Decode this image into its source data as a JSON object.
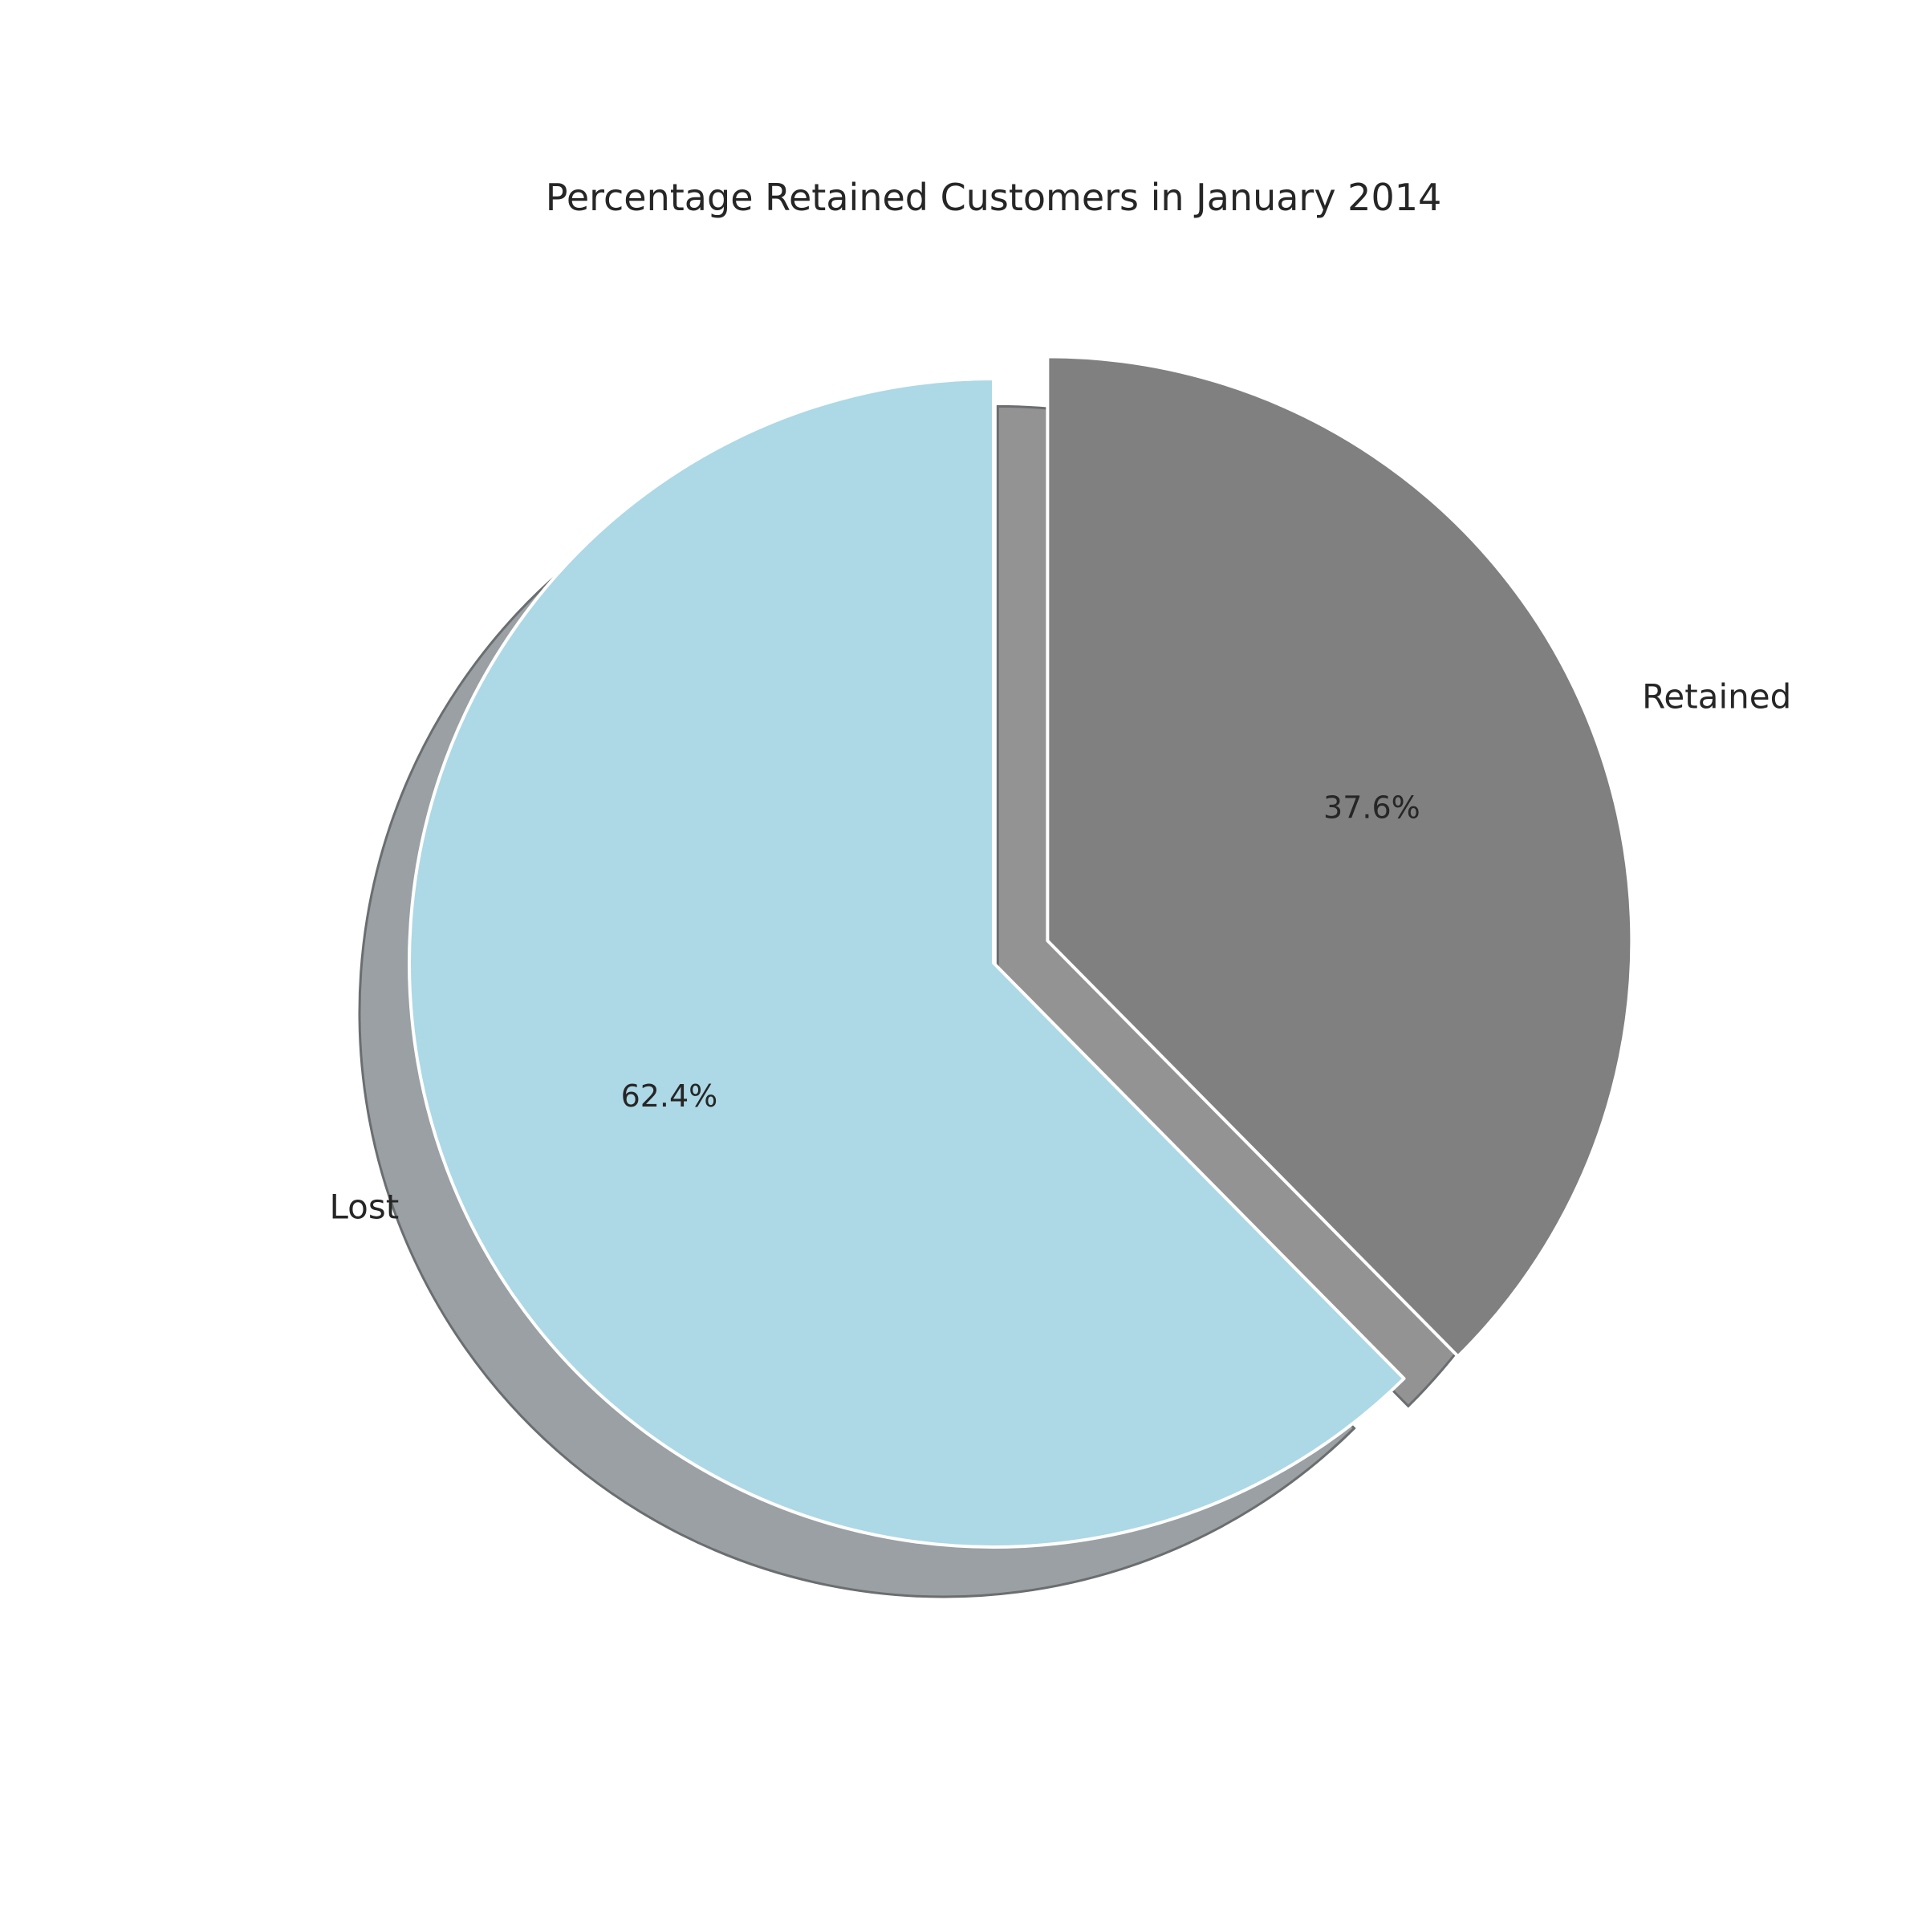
{
  "chart_data": {
    "type": "pie",
    "title": "Percentage Retained Customers in January 2014",
    "slices": [
      {
        "label": "Lost",
        "value": 62.4,
        "pct_label": "62.4%",
        "color": "#add8e6",
        "exploded": false
      },
      {
        "label": "Retained",
        "value": 37.6,
        "pct_label": "37.6%",
        "color": "#808080",
        "exploded": true
      }
    ],
    "shadow": true,
    "edge_color": "#ffffff",
    "shadow_colors": [
      "#9aa0a3",
      "#949394"
    ],
    "start_angle_degrees": 90,
    "direction": "counterclockwise",
    "legend": "none"
  }
}
